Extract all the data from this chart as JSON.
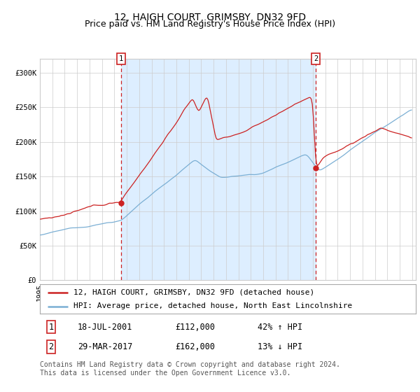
{
  "title": "12, HAIGH COURT, GRIMSBY, DN32 9FD",
  "subtitle": "Price paid vs. HM Land Registry's House Price Index (HPI)",
  "ylim": [
    0,
    320000
  ],
  "yticks": [
    0,
    50000,
    100000,
    150000,
    200000,
    250000,
    300000
  ],
  "ytick_labels": [
    "£0",
    "£50K",
    "£100K",
    "£150K",
    "£200K",
    "£250K",
    "£300K"
  ],
  "sale1_year": 2001.54,
  "sale1_price": 112000,
  "sale2_year": 2017.24,
  "sale2_price": 162000,
  "legend_line1": "12, HAIGH COURT, GRIMSBY, DN32 9FD (detached house)",
  "legend_line2": "HPI: Average price, detached house, North East Lincolnshire",
  "table_row1_label": "1",
  "table_row1_date": "18-JUL-2001",
  "table_row1_price": "£112,000",
  "table_row1_hpi": "42% ↑ HPI",
  "table_row2_label": "2",
  "table_row2_date": "29-MAR-2017",
  "table_row2_price": "£162,000",
  "table_row2_hpi": "13% ↓ HPI",
  "footnote": "Contains HM Land Registry data © Crown copyright and database right 2024.\nThis data is licensed under the Open Government Licence v3.0.",
  "hpi_color": "#7bafd4",
  "price_color": "#cc2222",
  "shade_color": "#ddeeff",
  "grid_color": "#cccccc",
  "title_fontsize": 10,
  "subtitle_fontsize": 9,
  "tick_fontsize": 7.5,
  "legend_fontsize": 8,
  "table_fontsize": 8.5,
  "footnote_fontsize": 7
}
